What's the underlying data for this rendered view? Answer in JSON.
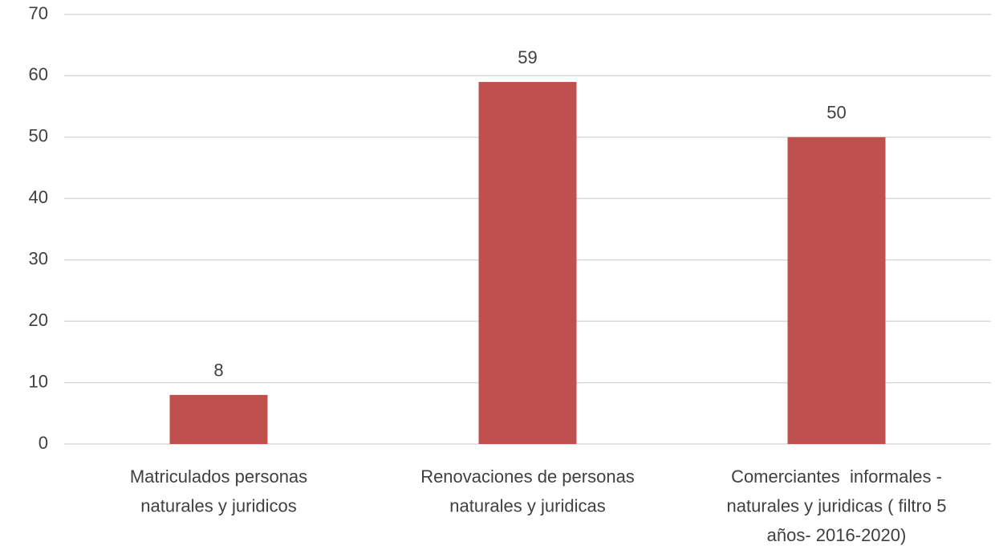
{
  "chart_data": {
    "type": "bar",
    "categories": [
      [
        "Matriculados personas",
        "naturales y juridicos"
      ],
      [
        "Renovaciones de personas",
        "naturales y juridicas"
      ],
      [
        "Comerciantes  informales -",
        "naturales y juridicas ( filtro 5",
        "años- 2016-2020)"
      ]
    ],
    "values": [
      8,
      59,
      50
    ],
    "color": "#c0504d",
    "ylim": [
      0,
      70
    ],
    "yticks": [
      0,
      10,
      20,
      30,
      40,
      50,
      60,
      70
    ],
    "grid": true
  }
}
